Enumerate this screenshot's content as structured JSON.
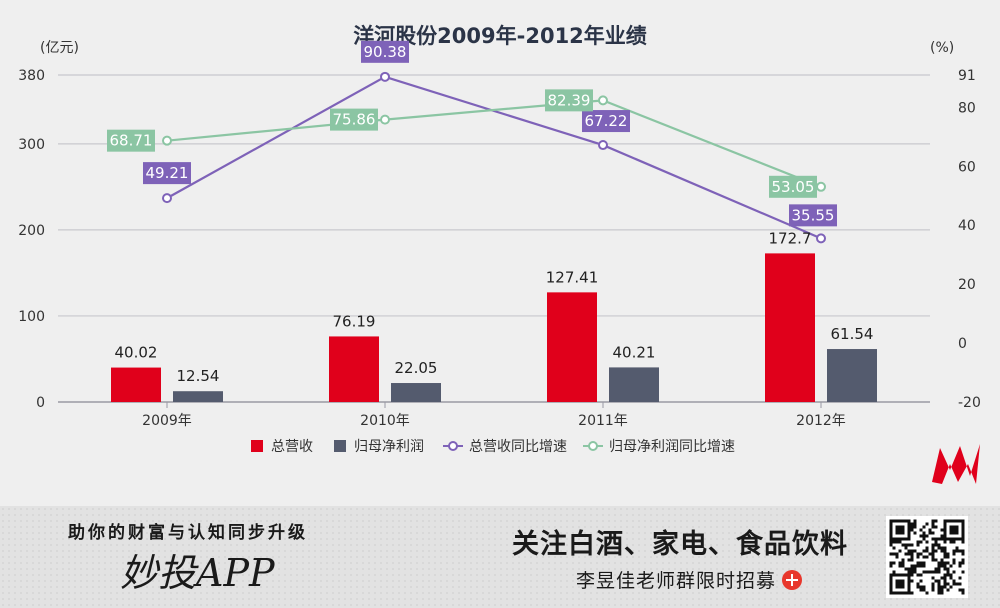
{
  "chart_data": {
    "type": "bar+line",
    "title": "洋河股份2009年-2012年业绩",
    "left_unit": "(亿元)",
    "right_unit": "(%)",
    "categories": [
      "2009年",
      "2010年",
      "2011年",
      "2012年"
    ],
    "left_ticks": [
      0,
      100,
      200,
      300,
      380
    ],
    "right_ticks": [
      -20,
      0,
      20,
      40,
      60,
      80,
      91
    ],
    "bar_series": [
      {
        "name": "总营收",
        "color": "#e0001b",
        "values": [
          40.02,
          76.19,
          127.41,
          172.7
        ],
        "labels": [
          "40.02",
          "76.19",
          "127.41",
          "172.7"
        ]
      },
      {
        "name": "归母净利润",
        "color": "#545b6e",
        "values": [
          12.54,
          22.05,
          40.21,
          61.54
        ],
        "labels": [
          "12.54",
          "22.05",
          "40.21",
          "61.54"
        ]
      }
    ],
    "line_series": [
      {
        "name": "总营收同比增速",
        "color": "#7e62b8",
        "values": [
          49.21,
          90.38,
          67.22,
          35.55
        ],
        "labels": [
          "49.21",
          "90.38",
          "67.22",
          "35.55"
        ]
      },
      {
        "name": "归母净利润同比增速",
        "color": "#8bc5a3",
        "values": [
          68.71,
          75.86,
          82.39,
          53.05
        ],
        "labels": [
          "68.71",
          "75.86",
          "82.39",
          "53.05"
        ]
      }
    ],
    "grid": true,
    "legend_position": "bottom"
  },
  "banner": {
    "slogan": "助你的财富与认知同步升级",
    "app_name": "妙投APP",
    "headline": "关注白酒、家电、食品饮料",
    "recruit": "李昱佳老师群限时招募"
  },
  "colors": {
    "logo": "#e0001b",
    "recruit_icon": "#e8372c"
  },
  "icons": {
    "logo": "m-logo-icon",
    "recruit": "plus-circle-icon",
    "qr": "qr-code-icon"
  }
}
